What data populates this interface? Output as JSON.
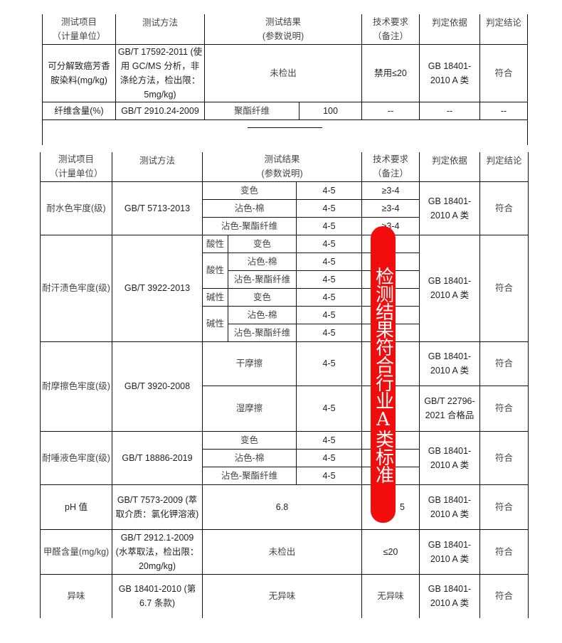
{
  "headers": {
    "item": "测试项目",
    "item_unit": "（计量单位）",
    "method": "测试方法",
    "result": "测试结果",
    "result_note": "(参数说明)",
    "req": "技术要求",
    "req_note": "（备注）",
    "basis": "判定依据",
    "conclusion": "判定结论"
  },
  "table1": {
    "aromatic": {
      "item": "可分解致癌芳香胺染料(mg/kg)",
      "method": "GB/T 17592-2011 (使用 GC/MS 分析，非涤纶方法，检出限：5mg/kg)",
      "result": "未检出",
      "req": "禁用≤20",
      "basis": "GB 18401-2010 A 类",
      "conclusion": "符合"
    },
    "fiber": {
      "item": "纤维含量(%)",
      "method": "GB/T 2910.24-2009",
      "fiber": "聚酯纤维",
      "value": "100",
      "req": "--",
      "basis": "--",
      "conclusion": "--"
    }
  },
  "table2": {
    "water": {
      "item": "耐水色牢度(级)",
      "method": "GB/T 5713-2013",
      "rows": [
        {
          "label": "变色",
          "value": "4-5",
          "req": "≥3-4"
        },
        {
          "label": "沾色-棉",
          "value": "4-5",
          "req": "≥3-4"
        },
        {
          "label": "沾色-聚酯纤维",
          "value": "4-5",
          "req": "≥3-4"
        }
      ],
      "basis": "GB 18401-2010 A 类",
      "conclusion": "符合"
    },
    "sweat": {
      "item": "耐汗渍色牢度(级)",
      "method": "GB/T 3922-2013",
      "acid": "酸性",
      "alkali": "碱性",
      "rows": [
        {
          "label": "变色",
          "value": "4-5"
        },
        {
          "label": "沾色-棉",
          "value": "4-5"
        },
        {
          "label": "沾色-聚酯纤维",
          "value": "4-5"
        },
        {
          "label": "变色",
          "value": "4-5"
        },
        {
          "label": "沾色-棉",
          "value": "4-5"
        },
        {
          "label": "沾色-聚酯纤维",
          "value": "4-5"
        }
      ],
      "basis": "GB 18401-2010 A 类",
      "conclusion": "符合"
    },
    "rubbing": {
      "item": "耐摩擦色牢度(级)",
      "method": "GB/T 3920-2008",
      "rows": [
        {
          "label": "干摩擦",
          "value": "4-5",
          "basis": "GB 18401-2010 A 类",
          "conclusion": "符合"
        },
        {
          "label": "湿摩擦",
          "value": "4-5",
          "basis": "GB/T 22796-2021 合格品",
          "conclusion": "符合"
        }
      ]
    },
    "saliva": {
      "item": "耐唾液色牢度(级)",
      "method": "GB/T 18886-2019",
      "rows": [
        {
          "label": "变色",
          "value": "4-5"
        },
        {
          "label": "沾色-棉",
          "value": "4-5"
        },
        {
          "label": "沾色-聚酯纤维",
          "value": "4-5"
        }
      ],
      "basis": "GB 18401-2010 A 类",
      "conclusion": "符合"
    },
    "ph": {
      "item": "pH 值",
      "method": "GB/T 7573-2009 (萃取介质：氯化钾溶液)",
      "result": "6.8",
      "req": "5",
      "basis": "GB 18401-2010 A 类",
      "conclusion": "符合"
    },
    "formaldehyde": {
      "item": "甲醛含量(mg/kg)",
      "method": "GB/T 2912.1-2009 (水萃取法，检出限：20mg/kg)",
      "result": "未检出",
      "req": "≤20",
      "basis": "GB 18401-2010 A 类",
      "conclusion": "符合"
    },
    "odor": {
      "item": "异味",
      "method": "GB 18401-2010 (第 6.7 条款)",
      "result": "无异味",
      "req": "无异味",
      "basis": "GB 18401-2010 A 类",
      "conclusion": "符合"
    }
  },
  "banner": {
    "text": "检测结果符合行业A类标准",
    "color": "#f20c0c"
  }
}
